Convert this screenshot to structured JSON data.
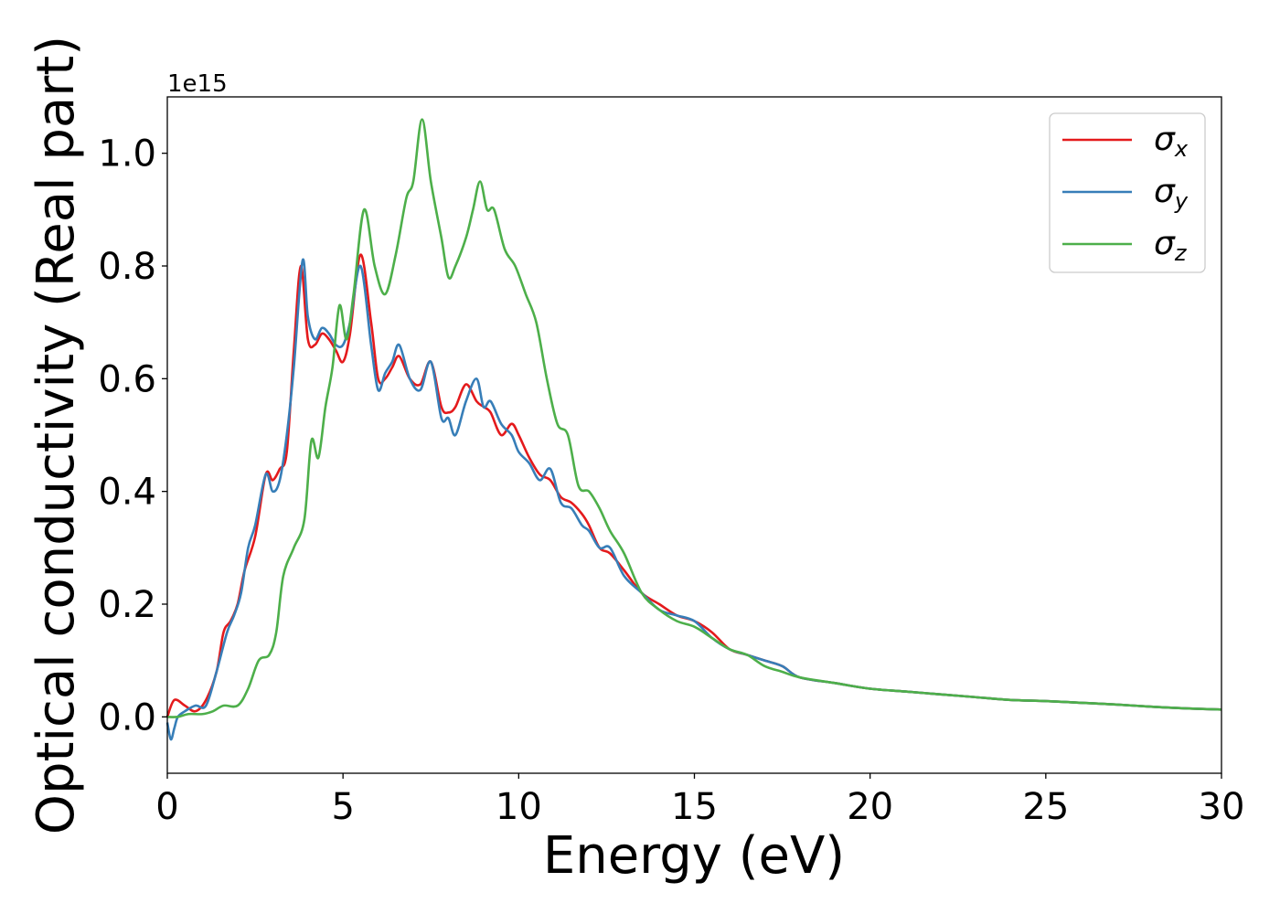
{
  "chart_data": {
    "type": "line",
    "title": "",
    "xlabel": "Energy (eV)",
    "ylabel": "Optical conductivity (Real part)",
    "y_offset_label": "1e15",
    "xlim": [
      0,
      30
    ],
    "ylim": [
      -0.1,
      1.1
    ],
    "x_ticks": [
      0,
      5,
      10,
      15,
      20,
      25,
      30
    ],
    "x_tick_labels": [
      "0",
      "5",
      "10",
      "15",
      "20",
      "25",
      "30"
    ],
    "y_ticks": [
      0.0,
      0.2,
      0.4,
      0.6,
      0.8,
      1.0
    ],
    "y_tick_labels": [
      "0.0",
      "0.2",
      "0.4",
      "0.6",
      "0.8",
      "1.0"
    ],
    "grid": false,
    "legend_position": "top-right",
    "series": [
      {
        "name": "σ",
        "subscript": "x",
        "color": "#e41a1c",
        "x": [
          0,
          0.2,
          0.5,
          0.8,
          1.1,
          1.4,
          1.6,
          1.8,
          2.0,
          2.2,
          2.5,
          2.8,
          3.0,
          3.2,
          3.4,
          3.6,
          3.8,
          4.0,
          4.2,
          4.4,
          4.6,
          4.8,
          5.0,
          5.2,
          5.5,
          5.8,
          6.0,
          6.2,
          6.4,
          6.6,
          6.9,
          7.2,
          7.5,
          7.8,
          8.0,
          8.2,
          8.5,
          8.8,
          9.0,
          9.2,
          9.5,
          9.8,
          10.0,
          10.3,
          10.6,
          10.9,
          11.2,
          11.5,
          11.8,
          12.0,
          12.3,
          12.6,
          13.0,
          13.5,
          14.0,
          14.5,
          15.0,
          15.5,
          16.0,
          16.5,
          17.0,
          17.5,
          18.0,
          19.0,
          20.0,
          21.0,
          22.0,
          23.0,
          24.0,
          25.0,
          26.0,
          27.0,
          28.0,
          29.0,
          30.0
        ],
        "values": [
          0.0,
          0.03,
          0.02,
          0.01,
          0.03,
          0.08,
          0.15,
          0.17,
          0.2,
          0.26,
          0.32,
          0.43,
          0.42,
          0.44,
          0.47,
          0.65,
          0.8,
          0.67,
          0.66,
          0.68,
          0.67,
          0.65,
          0.63,
          0.68,
          0.82,
          0.7,
          0.6,
          0.6,
          0.62,
          0.64,
          0.6,
          0.59,
          0.63,
          0.55,
          0.54,
          0.55,
          0.59,
          0.56,
          0.55,
          0.54,
          0.5,
          0.52,
          0.5,
          0.46,
          0.43,
          0.42,
          0.39,
          0.38,
          0.36,
          0.34,
          0.3,
          0.29,
          0.26,
          0.22,
          0.2,
          0.18,
          0.17,
          0.15,
          0.12,
          0.11,
          0.1,
          0.09,
          0.07,
          0.06,
          0.05,
          0.045,
          0.04,
          0.035,
          0.03,
          0.028,
          0.025,
          0.022,
          0.018,
          0.015,
          0.013
        ]
      },
      {
        "name": "σ",
        "subscript": "y",
        "color": "#377eb8",
        "x": [
          0,
          0.1,
          0.2,
          0.3,
          0.5,
          0.8,
          1.1,
          1.4,
          1.7,
          1.9,
          2.1,
          2.3,
          2.5,
          2.8,
          3.0,
          3.2,
          3.4,
          3.6,
          3.85,
          4.0,
          4.2,
          4.4,
          4.6,
          4.8,
          5.0,
          5.2,
          5.5,
          5.8,
          6.0,
          6.2,
          6.4,
          6.6,
          6.9,
          7.2,
          7.5,
          7.8,
          8.0,
          8.2,
          8.5,
          8.8,
          9.0,
          9.2,
          9.5,
          9.8,
          10.0,
          10.3,
          10.6,
          10.9,
          11.2,
          11.5,
          11.8,
          12.0,
          12.3,
          12.6,
          13.0,
          13.5,
          14.0,
          14.5,
          15.0,
          15.5,
          16.0,
          16.5,
          17.0,
          17.5,
          18.0,
          19.0,
          20.0,
          21.0,
          22.0,
          23.0,
          24.0,
          25.0,
          26.0,
          27.0,
          28.0,
          29.0,
          30.0
        ],
        "values": [
          -0.01,
          -0.04,
          -0.02,
          0.0,
          0.01,
          0.02,
          0.02,
          0.08,
          0.15,
          0.18,
          0.22,
          0.3,
          0.34,
          0.43,
          0.4,
          0.42,
          0.5,
          0.62,
          0.81,
          0.71,
          0.67,
          0.69,
          0.68,
          0.66,
          0.66,
          0.7,
          0.8,
          0.66,
          0.58,
          0.61,
          0.63,
          0.66,
          0.6,
          0.58,
          0.63,
          0.53,
          0.53,
          0.5,
          0.56,
          0.6,
          0.55,
          0.56,
          0.52,
          0.5,
          0.47,
          0.45,
          0.42,
          0.44,
          0.38,
          0.37,
          0.34,
          0.33,
          0.3,
          0.3,
          0.25,
          0.22,
          0.19,
          0.18,
          0.17,
          0.14,
          0.12,
          0.11,
          0.1,
          0.09,
          0.07,
          0.06,
          0.05,
          0.045,
          0.04,
          0.035,
          0.03,
          0.028,
          0.025,
          0.022,
          0.018,
          0.015,
          0.013
        ]
      },
      {
        "name": "σ",
        "subscript": "z",
        "color": "#4daf4a",
        "x": [
          0,
          0.3,
          0.6,
          1.0,
          1.3,
          1.6,
          2.0,
          2.3,
          2.6,
          2.9,
          3.1,
          3.3,
          3.6,
          3.9,
          4.1,
          4.3,
          4.5,
          4.7,
          4.9,
          5.1,
          5.3,
          5.6,
          5.9,
          6.2,
          6.5,
          6.8,
          7.0,
          7.25,
          7.5,
          7.8,
          8.0,
          8.2,
          8.5,
          8.7,
          8.9,
          9.1,
          9.3,
          9.6,
          9.9,
          10.2,
          10.5,
          10.8,
          11.1,
          11.4,
          11.7,
          12.0,
          12.3,
          12.6,
          13.0,
          13.5,
          14.0,
          14.5,
          15.0,
          15.5,
          16.0,
          16.5,
          17.0,
          17.5,
          18.0,
          19.0,
          20.0,
          21.0,
          22.0,
          23.0,
          24.0,
          25.0,
          26.0,
          27.0,
          28.0,
          29.0,
          30.0
        ],
        "values": [
          0.0,
          0.0,
          0.005,
          0.005,
          0.01,
          0.02,
          0.02,
          0.05,
          0.1,
          0.11,
          0.15,
          0.25,
          0.3,
          0.35,
          0.49,
          0.46,
          0.55,
          0.62,
          0.73,
          0.67,
          0.75,
          0.9,
          0.8,
          0.75,
          0.82,
          0.92,
          0.95,
          1.06,
          0.95,
          0.85,
          0.78,
          0.8,
          0.85,
          0.9,
          0.95,
          0.9,
          0.9,
          0.83,
          0.8,
          0.75,
          0.7,
          0.6,
          0.52,
          0.5,
          0.41,
          0.4,
          0.37,
          0.33,
          0.29,
          0.22,
          0.19,
          0.17,
          0.16,
          0.14,
          0.12,
          0.11,
          0.09,
          0.08,
          0.07,
          0.06,
          0.05,
          0.045,
          0.04,
          0.035,
          0.03,
          0.028,
          0.025,
          0.022,
          0.018,
          0.015,
          0.013
        ]
      }
    ]
  }
}
